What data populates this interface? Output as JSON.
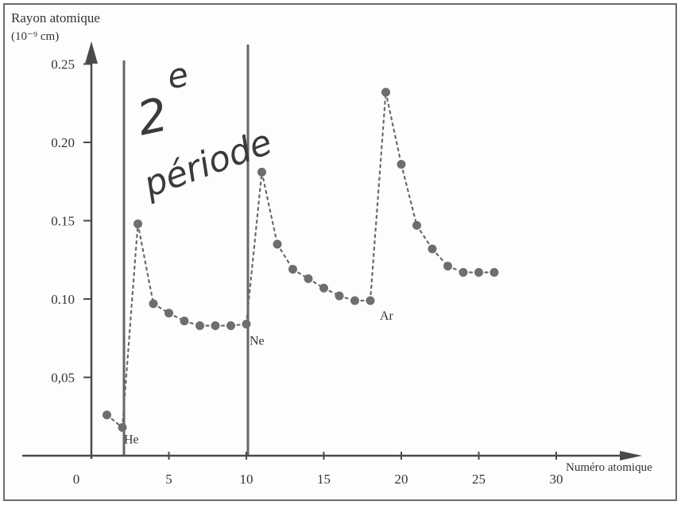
{
  "chart_data": {
    "type": "scatter",
    "ylabel_line1": "Rayon atomique",
    "ylabel_line2": "(10⁻⁹ cm)",
    "xlabel": "Numéro atomique",
    "xlim": [
      0,
      30
    ],
    "ylim": [
      0,
      0.25
    ],
    "x_ticks": [
      {
        "value": 0,
        "label": "0"
      },
      {
        "value": 5,
        "label": "5"
      },
      {
        "value": 10,
        "label": "10"
      },
      {
        "value": 15,
        "label": "15"
      },
      {
        "value": 20,
        "label": "20"
      },
      {
        "value": 25,
        "label": "25"
      },
      {
        "value": 30,
        "label": "30"
      }
    ],
    "y_ticks": [
      {
        "value": 0.05,
        "label": "0,05"
      },
      {
        "value": 0.1,
        "label": "0.10"
      },
      {
        "value": 0.15,
        "label": "0.15"
      },
      {
        "value": 0.2,
        "label": "0.20"
      },
      {
        "value": 0.25,
        "label": "0.25"
      }
    ],
    "period_boundaries": [
      2,
      10
    ],
    "handwritten_annotation": [
      "2",
      "e",
      "période"
    ],
    "element_labels": [
      {
        "text": "He",
        "x": 2,
        "y": 0.018
      },
      {
        "text": "Ne",
        "x": 10,
        "y": 0.084
      },
      {
        "text": "Ar",
        "x": 18,
        "y": 0.098
      }
    ],
    "series": [
      {
        "x": [
          1,
          2,
          3,
          4,
          5,
          6,
          7,
          8,
          9,
          10,
          11,
          12,
          13,
          14,
          15,
          16,
          17,
          18,
          19,
          20,
          21,
          22,
          23,
          24,
          25,
          26
        ],
        "y": [
          0.026,
          0.018,
          0.148,
          0.097,
          0.091,
          0.086,
          0.083,
          0.083,
          0.083,
          0.084,
          0.181,
          0.135,
          0.119,
          0.113,
          0.107,
          0.102,
          0.099,
          0.099,
          0.232,
          0.186,
          0.147,
          0.132,
          0.121,
          0.117,
          0.117,
          0.117
        ]
      }
    ],
    "colors": {
      "axis": "#4a4a4a",
      "points": "#6e6e6e",
      "line": "#6a6a6a",
      "period_line": "#666666"
    }
  }
}
